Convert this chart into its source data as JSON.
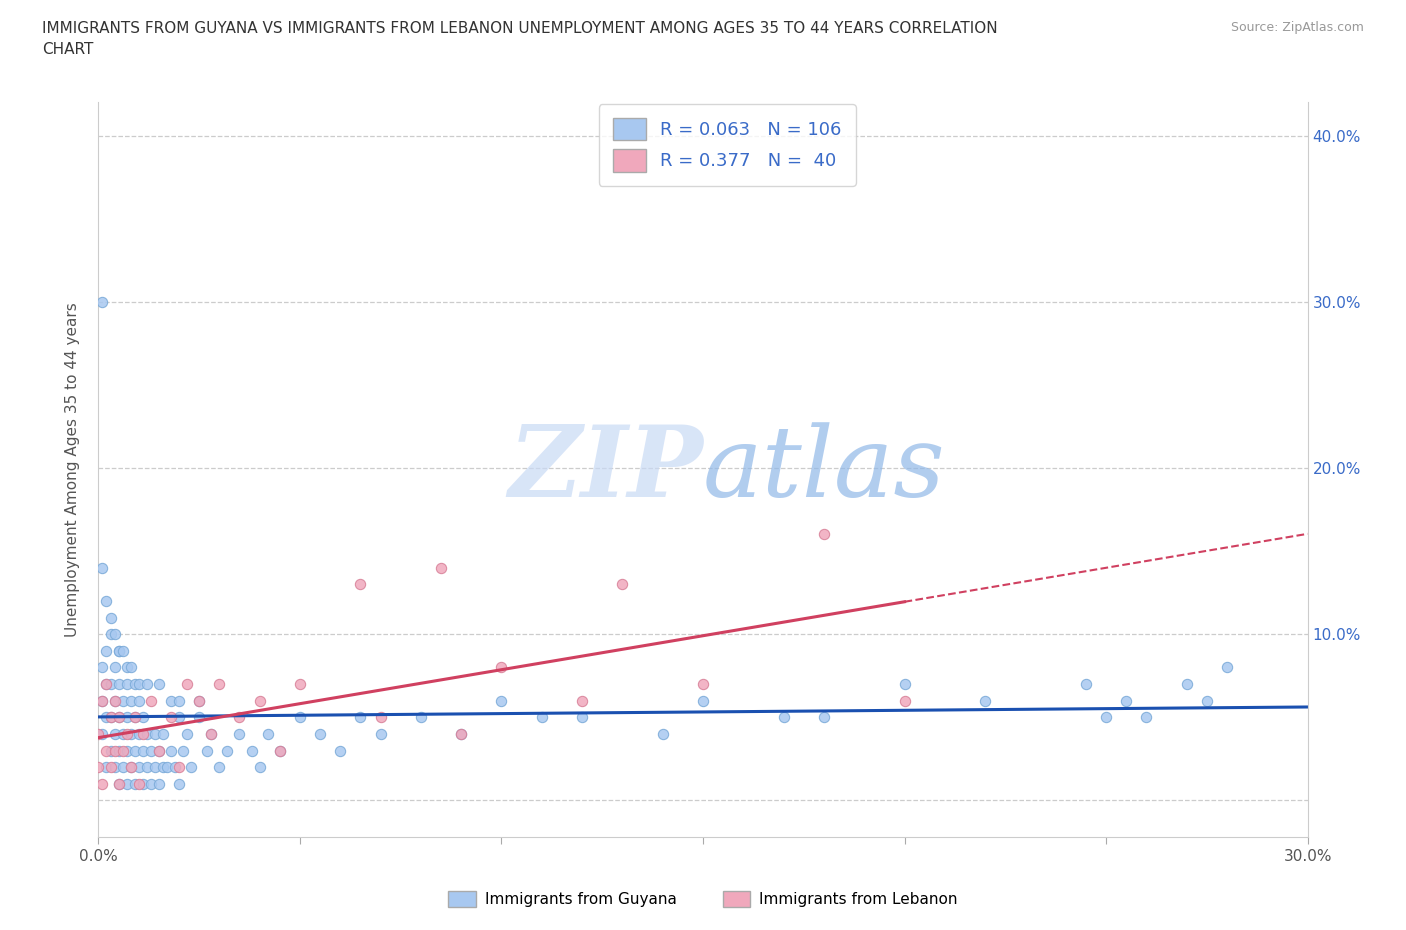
{
  "title_line1": "IMMIGRANTS FROM GUYANA VS IMMIGRANTS FROM LEBANON UNEMPLOYMENT AMONG AGES 35 TO 44 YEARS CORRELATION",
  "title_line2": "CHART",
  "source": "Source: ZipAtlas.com",
  "ylabel": "Unemployment Among Ages 35 to 44 years",
  "legend_label_1": "Immigrants from Guyana",
  "legend_label_2": "Immigrants from Lebanon",
  "R1": "0.063",
  "N1": "106",
  "R2": "0.377",
  "N2": "40",
  "color_guyana": "#a8c8f0",
  "color_lebanon": "#f0a8bc",
  "edge_guyana": "#7aaad8",
  "edge_lebanon": "#d88098",
  "trendline_color_guyana": "#1a50b0",
  "trendline_color_lebanon": "#d04060",
  "watermark_color": "#d0e4f8",
  "xmin": 0.0,
  "xmax": 0.3,
  "ymin": -0.022,
  "ymax": 0.42,
  "x_ticks": [
    0.0,
    0.05,
    0.1,
    0.15,
    0.2,
    0.25,
    0.3
  ],
  "y_ticks": [
    0.0,
    0.1,
    0.2,
    0.3,
    0.4
  ],
  "guyana_x": [
    0.001,
    0.001,
    0.001,
    0.002,
    0.002,
    0.002,
    0.002,
    0.003,
    0.003,
    0.003,
    0.003,
    0.004,
    0.004,
    0.004,
    0.004,
    0.005,
    0.005,
    0.005,
    0.005,
    0.005,
    0.006,
    0.006,
    0.006,
    0.007,
    0.007,
    0.007,
    0.007,
    0.008,
    0.008,
    0.008,
    0.009,
    0.009,
    0.009,
    0.01,
    0.01,
    0.01,
    0.011,
    0.011,
    0.011,
    0.012,
    0.012,
    0.013,
    0.013,
    0.014,
    0.014,
    0.015,
    0.015,
    0.016,
    0.016,
    0.017,
    0.018,
    0.019,
    0.02,
    0.02,
    0.021,
    0.022,
    0.023,
    0.025,
    0.027,
    0.028,
    0.03,
    0.032,
    0.035,
    0.038,
    0.04,
    0.042,
    0.045,
    0.05,
    0.055,
    0.06,
    0.065,
    0.07,
    0.08,
    0.09,
    0.1,
    0.11,
    0.12,
    0.14,
    0.15,
    0.17,
    0.18,
    0.2,
    0.22,
    0.245,
    0.25,
    0.255,
    0.26,
    0.27,
    0.275,
    0.28,
    0.001,
    0.001,
    0.002,
    0.003,
    0.004,
    0.005,
    0.006,
    0.007,
    0.008,
    0.009,
    0.01,
    0.012,
    0.015,
    0.018,
    0.02,
    0.025
  ],
  "guyana_y": [
    0.04,
    0.06,
    0.08,
    0.02,
    0.05,
    0.07,
    0.09,
    0.03,
    0.05,
    0.07,
    0.1,
    0.02,
    0.04,
    0.06,
    0.08,
    0.01,
    0.03,
    0.05,
    0.07,
    0.09,
    0.02,
    0.04,
    0.06,
    0.01,
    0.03,
    0.05,
    0.07,
    0.02,
    0.04,
    0.06,
    0.01,
    0.03,
    0.05,
    0.02,
    0.04,
    0.06,
    0.01,
    0.03,
    0.05,
    0.02,
    0.04,
    0.01,
    0.03,
    0.02,
    0.04,
    0.01,
    0.03,
    0.02,
    0.04,
    0.02,
    0.03,
    0.02,
    0.01,
    0.05,
    0.03,
    0.04,
    0.02,
    0.05,
    0.03,
    0.04,
    0.02,
    0.03,
    0.04,
    0.03,
    0.02,
    0.04,
    0.03,
    0.05,
    0.04,
    0.03,
    0.05,
    0.04,
    0.05,
    0.04,
    0.06,
    0.05,
    0.05,
    0.04,
    0.06,
    0.05,
    0.05,
    0.07,
    0.06,
    0.07,
    0.05,
    0.06,
    0.05,
    0.07,
    0.06,
    0.08,
    0.3,
    0.14,
    0.12,
    0.11,
    0.1,
    0.09,
    0.09,
    0.08,
    0.08,
    0.07,
    0.07,
    0.07,
    0.07,
    0.06,
    0.06,
    0.06
  ],
  "lebanon_x": [
    0.0,
    0.0,
    0.001,
    0.001,
    0.002,
    0.002,
    0.003,
    0.003,
    0.004,
    0.004,
    0.005,
    0.005,
    0.006,
    0.007,
    0.008,
    0.009,
    0.01,
    0.011,
    0.013,
    0.015,
    0.018,
    0.02,
    0.022,
    0.025,
    0.028,
    0.03,
    0.035,
    0.04,
    0.045,
    0.05,
    0.065,
    0.07,
    0.085,
    0.09,
    0.1,
    0.12,
    0.13,
    0.15,
    0.18,
    0.2
  ],
  "lebanon_y": [
    0.02,
    0.04,
    0.01,
    0.06,
    0.03,
    0.07,
    0.02,
    0.05,
    0.03,
    0.06,
    0.01,
    0.05,
    0.03,
    0.04,
    0.02,
    0.05,
    0.01,
    0.04,
    0.06,
    0.03,
    0.05,
    0.02,
    0.07,
    0.06,
    0.04,
    0.07,
    0.05,
    0.06,
    0.03,
    0.07,
    0.13,
    0.05,
    0.14,
    0.04,
    0.08,
    0.06,
    0.13,
    0.07,
    0.16,
    0.06
  ]
}
